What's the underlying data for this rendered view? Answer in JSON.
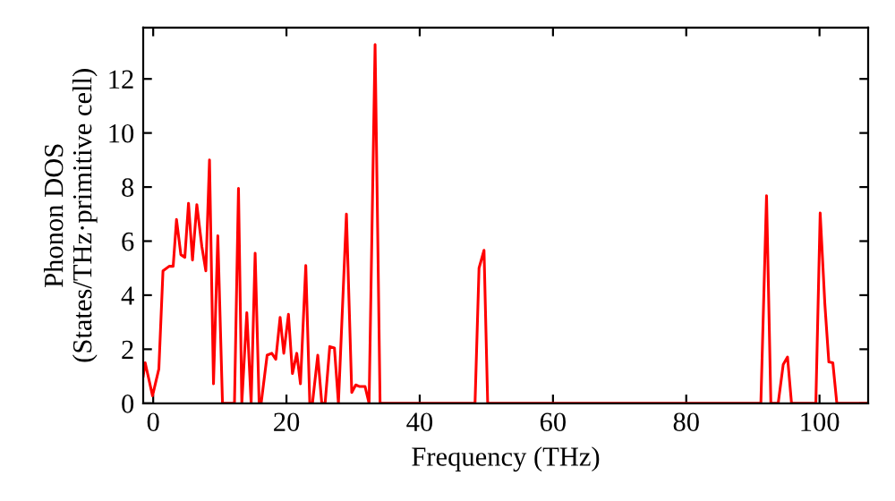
{
  "chart_data": {
    "type": "line",
    "xlabel": "Frequency (THz)",
    "ylabel": "Phonon DOS\n(States/THz·primitive cell)",
    "series": [
      {
        "color": "#ff0000",
        "x": [
          -1.5,
          -1.2,
          -0.1,
          0.85,
          1.47,
          2.4,
          3.0,
          3.5,
          4.15,
          4.75,
          5.3,
          5.9,
          6.55,
          7.3,
          7.9,
          8.45,
          9.05,
          9.7,
          10.4,
          12.2,
          12.8,
          13.3,
          14.05,
          14.7,
          15.3,
          15.9,
          16.2,
          17.1,
          17.8,
          18.4,
          19.05,
          19.6,
          20.3,
          20.9,
          21.55,
          22.1,
          22.9,
          23.5,
          23.9,
          24.7,
          25.3,
          25.8,
          26.5,
          27.2,
          27.8,
          29.0,
          29.8,
          30.4,
          31.0,
          31.8,
          32.4,
          33.3,
          34.05,
          48.3,
          48.9,
          49.65,
          50.2,
          91.2,
          92.05,
          92.7,
          93.8,
          94.55,
          95.2,
          95.8,
          99.45,
          100.1,
          100.8,
          101.4,
          102.0,
          102.6,
          107.3
        ],
        "values": [
          1.0,
          1.5,
          0.28,
          1.27,
          4.9,
          5.07,
          5.07,
          6.8,
          5.5,
          5.4,
          7.4,
          5.3,
          7.35,
          5.8,
          4.9,
          9.0,
          0.72,
          6.2,
          0,
          0,
          7.95,
          0,
          3.35,
          0,
          5.55,
          0,
          0,
          1.78,
          1.85,
          1.63,
          3.18,
          1.85,
          3.29,
          1.1,
          1.85,
          0.72,
          5.1,
          0,
          0,
          1.78,
          0,
          0,
          2.1,
          2.05,
          0,
          7.0,
          0.4,
          0.68,
          0.62,
          0.62,
          0,
          13.27,
          0,
          0,
          5.0,
          5.66,
          0,
          0,
          7.68,
          0,
          0,
          1.43,
          1.71,
          0,
          0,
          7.04,
          3.68,
          1.53,
          1.5,
          0,
          0
        ]
      }
    ],
    "xlim": [
      -1.5,
      107.3
    ],
    "ylim": [
      0,
      13.9
    ],
    "xticks": [
      0,
      20,
      40,
      60,
      80,
      100
    ],
    "yticks": [
      0,
      2,
      4,
      6,
      8,
      10,
      12
    ],
    "grid": false,
    "legend": false,
    "marker": "none",
    "line_style": "solid"
  }
}
